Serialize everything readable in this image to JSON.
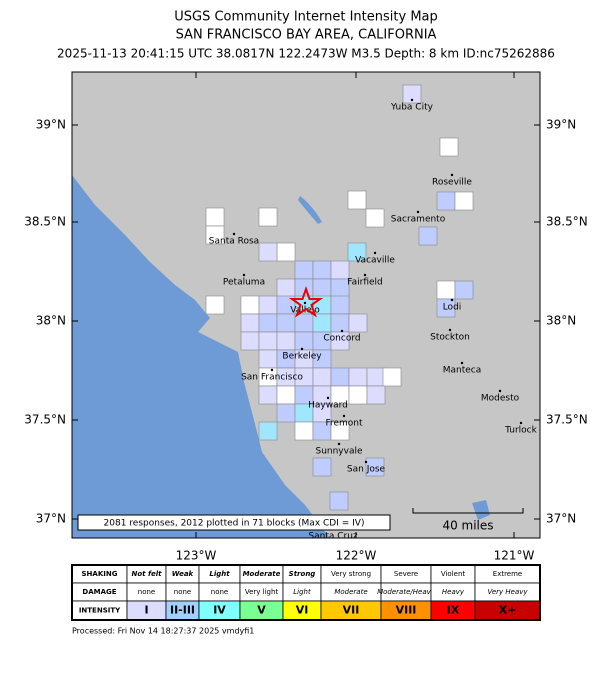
{
  "header": {
    "title": "USGS Community Internet Intensity Map",
    "region": "SAN FRANCISCO BAY AREA, CALIFORNIA",
    "details": "2025-11-13 20:41:15 UTC 38.0817N 122.2473W M3.5 Depth: 8 km ID:nc75262886"
  },
  "map": {
    "lat_labels": [
      "39°N",
      "38.5°N",
      "38°N",
      "37.5°N",
      "37°N"
    ],
    "lon_labels": [
      "123°W",
      "122°W",
      "121°W"
    ],
    "cities": [
      "Yuba City",
      "Roseville",
      "Sacramento",
      "Santa Rosa",
      "Vacaville",
      "Petaluma",
      "Fairfield",
      "Vallejo",
      "Lodi",
      "Concord",
      "Stockton",
      "Berkeley",
      "Manteca",
      "San Francisco",
      "Modesto",
      "Hayward",
      "Fremont",
      "Turlock",
      "Sunnyvale",
      "San Jose",
      "Santa Cruz"
    ],
    "scale_label": "40 miles",
    "summary": "2081 responses, 2012 plotted in 71 blocks (Max CDI = IV)"
  },
  "legend": {
    "shaking": [
      "SHAKING",
      "Not felt",
      "Weak",
      "Light",
      "Moderate",
      "Strong",
      "Very strong",
      "Severe",
      "Violent",
      "Extreme"
    ],
    "damage": [
      "DAMAGE",
      "none",
      "none",
      "none",
      "Very light",
      "Light",
      "Moderate",
      "Moderate/Heavy",
      "Heavy",
      "Very Heavy"
    ],
    "intensity": [
      "INTENSITY",
      "I",
      "II-III",
      "IV",
      "V",
      "VI",
      "VII",
      "VIII",
      "IX",
      "X+"
    ]
  },
  "footer": {
    "processed": "Processed: Fri Nov 14 18:27:37 2025 vmdyfi1"
  }
}
